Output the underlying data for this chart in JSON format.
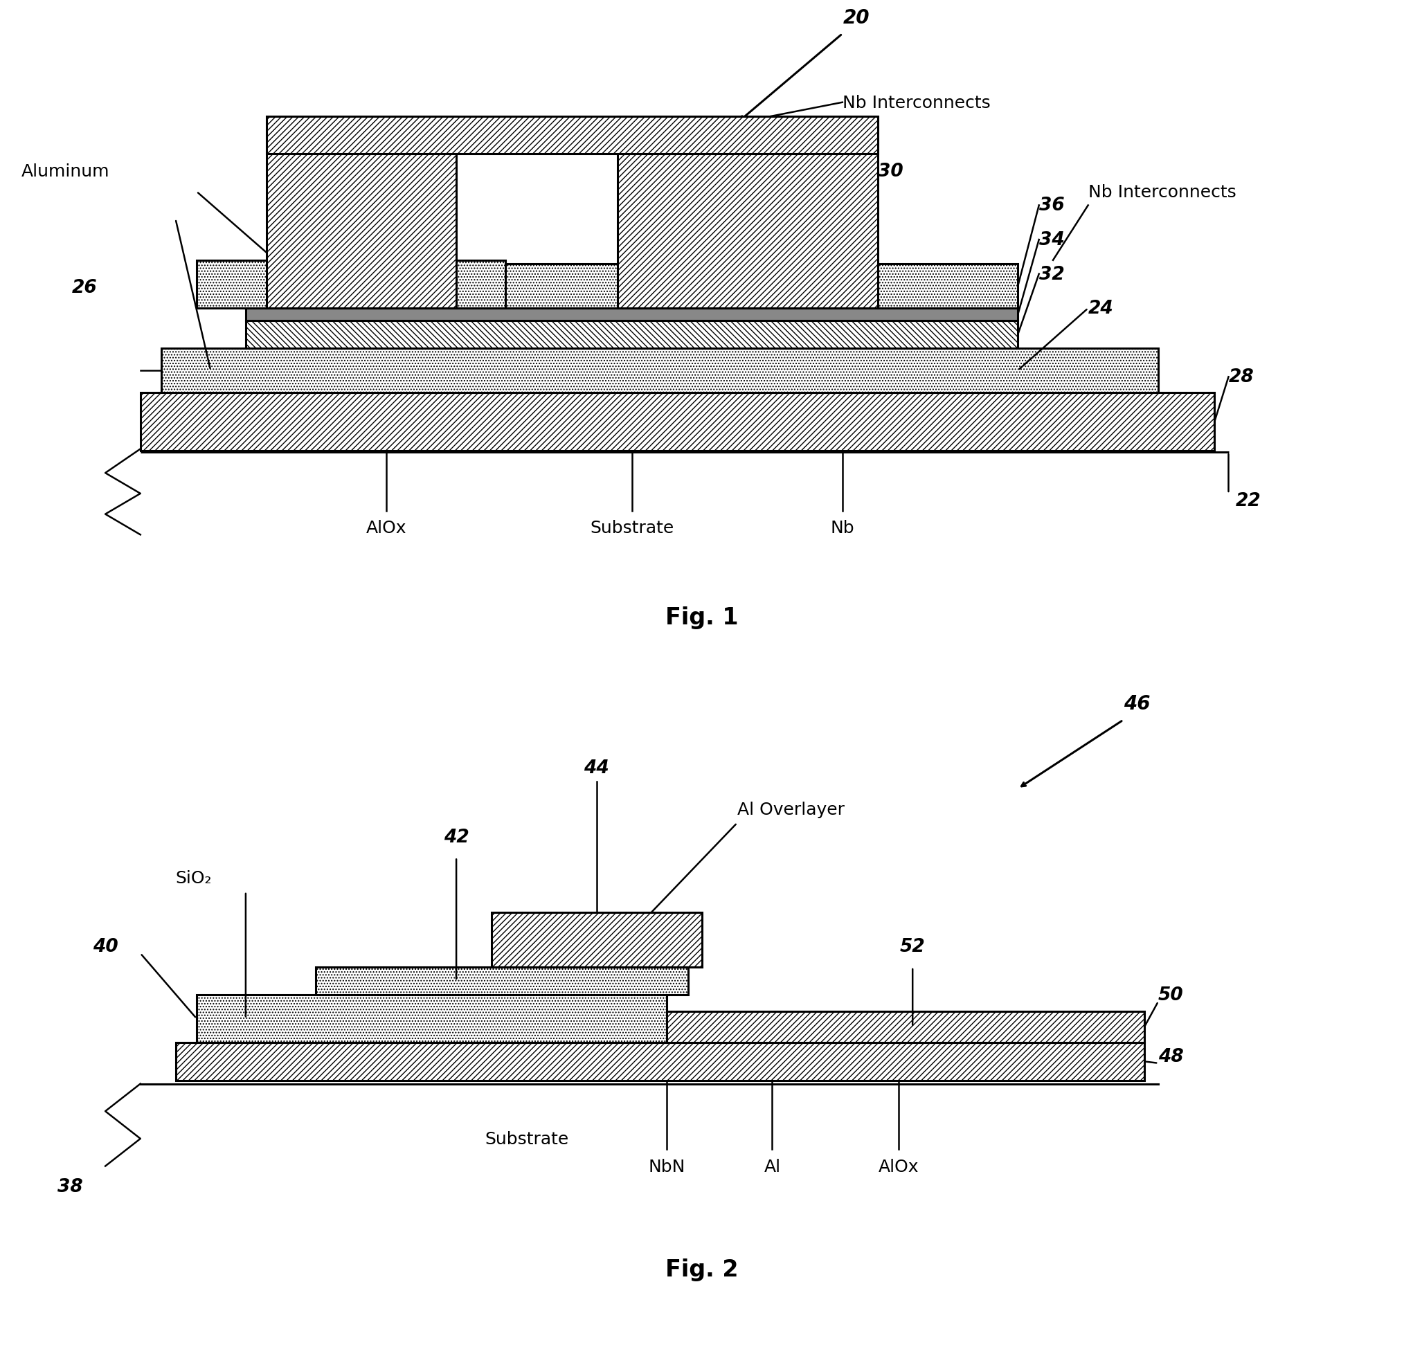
{
  "fig1": {
    "label_20": "20",
    "label_22": "22",
    "label_24": "24",
    "label_26": "26",
    "label_28": "28",
    "label_30": "30",
    "label_32": "32",
    "label_34": "34",
    "label_36": "36",
    "text_Nb_interconnects_top": "Nb Interconnects",
    "text_Nb_interconnects_right": "Nb Interconnects",
    "text_Aluminum": "Aluminum",
    "text_AlOx": "AlOx",
    "text_Substrate": "Substrate",
    "text_Nb": "Nb",
    "caption": "Fig. 1"
  },
  "fig2": {
    "label_38": "38",
    "label_40": "40",
    "label_42": "42",
    "label_44": "44",
    "label_46": "46",
    "label_48": "48",
    "label_50": "50",
    "label_52": "52",
    "text_SiO2": "SiO₂",
    "text_Al_Overlayer": "Al Overlayer",
    "text_Substrate": "Substrate",
    "text_NbN": "NbN",
    "text_Al": "Al",
    "text_AlOx": "AlOx",
    "caption": "Fig. 2"
  },
  "lw": 1.8,
  "lw_thick": 2.2,
  "bg_color": "#ffffff",
  "line_color": "#000000",
  "font_size_label": 19,
  "font_size_caption": 24,
  "font_size_annot": 18
}
